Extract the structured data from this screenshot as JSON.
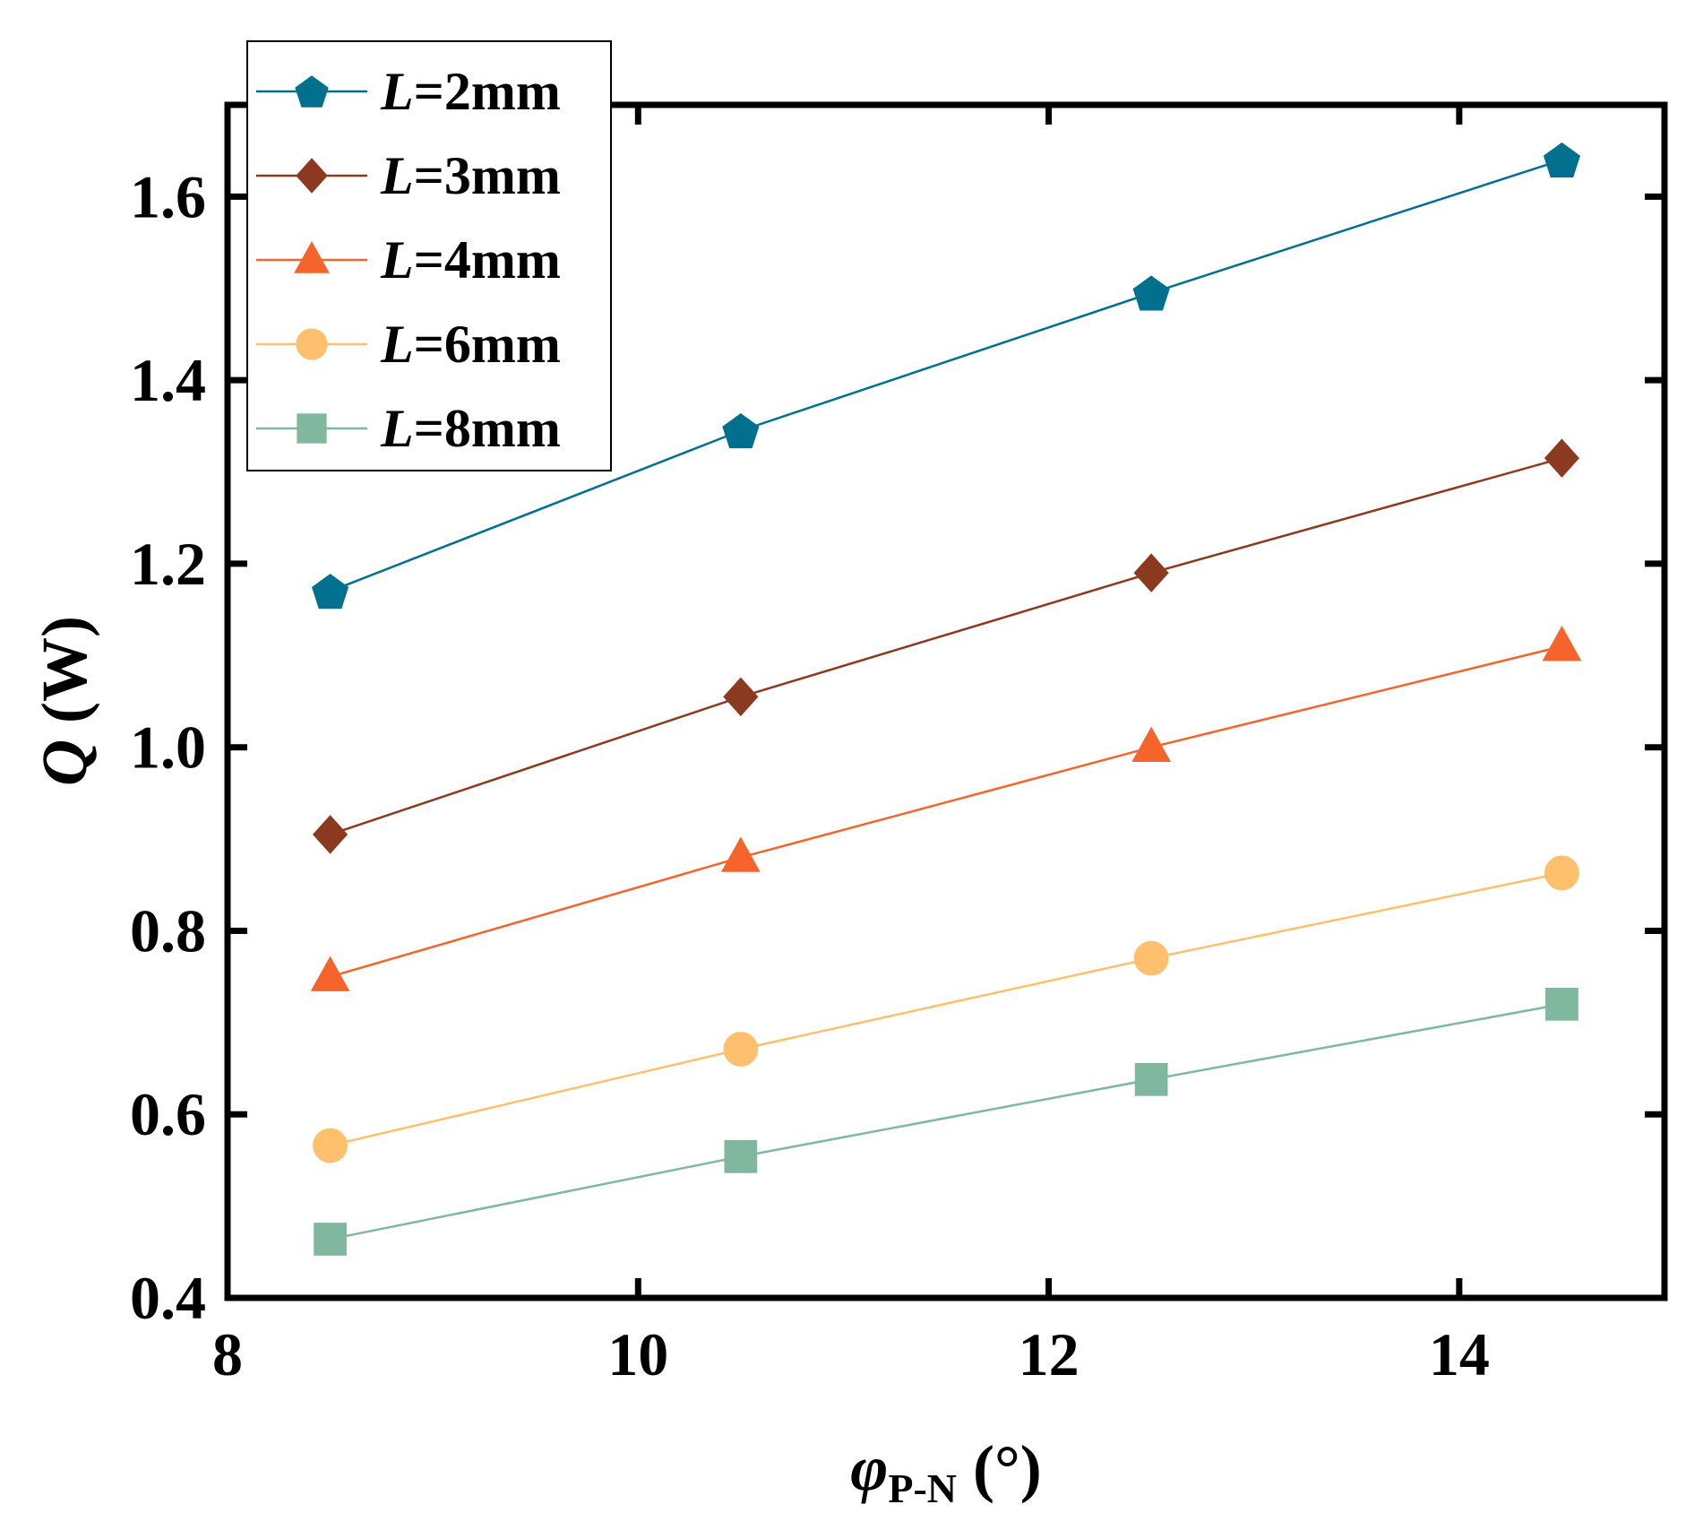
{
  "chart_data": {
    "type": "line",
    "title": "",
    "xlabel": {
      "symbol": "φ",
      "subscript": "P-N",
      "unit": " (°)"
    },
    "ylabel": {
      "symbol": "Q",
      "unit": " (W)"
    },
    "xlim": [
      8,
      15
    ],
    "ylim": [
      0.4,
      1.7
    ],
    "xticks": [
      8,
      10,
      12,
      14
    ],
    "xtick_labels": [
      "8",
      "10",
      "12",
      "14"
    ],
    "yticks": [
      0.4,
      0.6,
      0.8,
      1.0,
      1.2,
      1.4,
      1.6
    ],
    "ytick_labels": [
      "0.4",
      "0.6",
      "0.8",
      "1.0",
      "1.2",
      "1.4",
      "1.6"
    ],
    "grid": false,
    "legend_position": "top-left",
    "series": [
      {
        "name": "L=2mm",
        "var": "L",
        "rest": "=2mm",
        "marker": "pentagon",
        "color": "#00708f",
        "x": [
          8.5,
          10.5,
          12.5,
          14.5
        ],
        "values": [
          1.17,
          1.345,
          1.495,
          1.64
        ]
      },
      {
        "name": "L=3mm",
        "var": "L",
        "rest": "=3mm",
        "marker": "diamond",
        "color": "#8b3a1f",
        "x": [
          8.5,
          10.5,
          12.5,
          14.5
        ],
        "values": [
          0.905,
          1.055,
          1.19,
          1.315
        ]
      },
      {
        "name": "L=4mm",
        "var": "L",
        "rest": "=4mm",
        "marker": "triangle",
        "color": "#f5652b",
        "x": [
          8.5,
          10.5,
          12.5,
          14.5
        ],
        "values": [
          0.75,
          0.88,
          1.0,
          1.11
        ]
      },
      {
        "name": "L=6mm",
        "var": "L",
        "rest": "=6mm",
        "marker": "circle",
        "color": "#ffc06e",
        "x": [
          8.5,
          10.5,
          12.5,
          14.5
        ],
        "values": [
          0.566,
          0.671,
          0.77,
          0.863
        ]
      },
      {
        "name": "L=8mm",
        "var": "L",
        "rest": "=8mm",
        "marker": "square",
        "color": "#7fb89f",
        "x": [
          8.5,
          10.5,
          12.5,
          14.5
        ],
        "values": [
          0.464,
          0.554,
          0.638,
          0.72
        ]
      }
    ]
  }
}
